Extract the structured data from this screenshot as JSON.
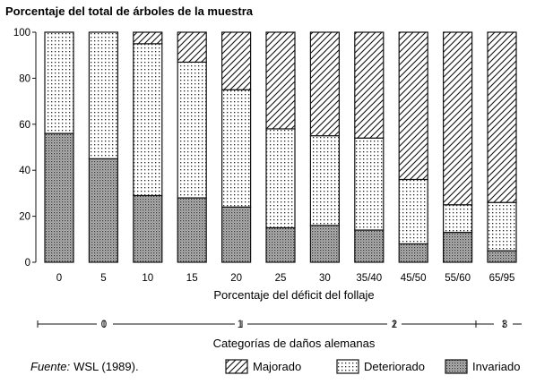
{
  "chart_data": {
    "type": "bar",
    "stacked": true,
    "title": "Porcentaje del total de árboles de la muestra",
    "xlabel": "Porcentaje del déficit del follaje",
    "categories": [
      "0",
      "5",
      "10",
      "15",
      "20",
      "25",
      "30",
      "35/40",
      "45/50",
      "55/60",
      "65/95"
    ],
    "ylim": [
      0,
      100
    ],
    "yticks": [
      0,
      20,
      40,
      60,
      80,
      100
    ],
    "grid": false,
    "series": [
      {
        "name": "Invariado",
        "pattern": "cross-hatch",
        "values": [
          56,
          45,
          29,
          28,
          24,
          15,
          16,
          14,
          8,
          13,
          5
        ]
      },
      {
        "name": "Deteriorado",
        "pattern": "dotted",
        "values": [
          44,
          55,
          66,
          59,
          51,
          43,
          39,
          40,
          28,
          12,
          21
        ]
      },
      {
        "name": "Majorado",
        "pattern": "diagonal",
        "values": [
          0,
          0,
          5,
          13,
          25,
          42,
          45,
          46,
          64,
          75,
          74
        ]
      }
    ],
    "legend": {
      "position": "bottom-right",
      "order": [
        "Majorado",
        "Deteriorado",
        "Invariado"
      ]
    },
    "secondary_scale": {
      "label": "Categorías de daños alemanas",
      "marks": [
        "0",
        "1",
        "2",
        "3"
      ]
    },
    "source": {
      "prefix": "Fuente:",
      "text": "WSL (1989)."
    }
  }
}
